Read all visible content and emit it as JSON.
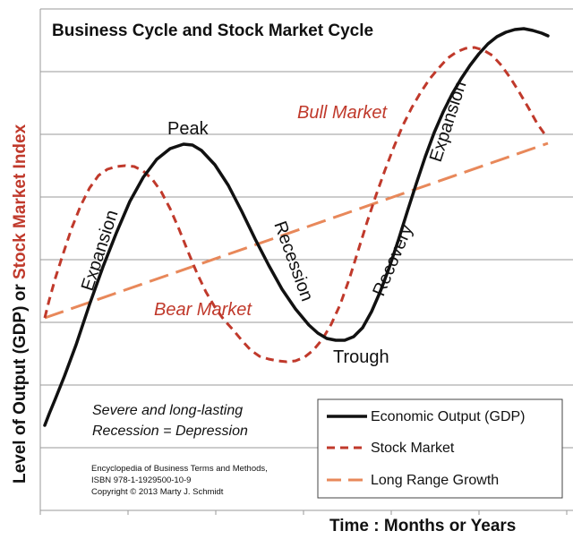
{
  "chart_data": {
    "type": "line",
    "title": "Business Cycle and Stock Market Cycle",
    "xlabel": "Time : Months or Years",
    "ylabel_part1": "Level of Output  (GDP) or ",
    "ylabel_part2": "Stock Market Index",
    "grid": true,
    "legend_position": "bottom-right",
    "colors": {
      "gdp": "#111111",
      "stock": "#c0392b",
      "growth": "#e8885a",
      "grid": "#9a9a9a",
      "bear_bull_text": "#c0392b"
    },
    "series": [
      {
        "name": "Economic Output (GDP)",
        "style": "solid",
        "points": [
          [
            50,
            475
          ],
          [
            55,
            462
          ],
          [
            62,
            445
          ],
          [
            72,
            420
          ],
          [
            85,
            385
          ],
          [
            100,
            340
          ],
          [
            115,
            298
          ],
          [
            130,
            260
          ],
          [
            145,
            225
          ],
          [
            160,
            198
          ],
          [
            175,
            178
          ],
          [
            190,
            166
          ],
          [
            205,
            161
          ],
          [
            215,
            162
          ],
          [
            225,
            168
          ],
          [
            240,
            184
          ],
          [
            255,
            207
          ],
          [
            270,
            236
          ],
          [
            285,
            267
          ],
          [
            300,
            296
          ],
          [
            315,
            323
          ],
          [
            330,
            345
          ],
          [
            345,
            363
          ],
          [
            355,
            372
          ],
          [
            365,
            378
          ],
          [
            375,
            380
          ],
          [
            385,
            380
          ],
          [
            395,
            376
          ],
          [
            405,
            366
          ],
          [
            415,
            348
          ],
          [
            425,
            325
          ],
          [
            435,
            298
          ],
          [
            445,
            268
          ],
          [
            455,
            236
          ],
          [
            465,
            205
          ],
          [
            475,
            175
          ],
          [
            485,
            148
          ],
          [
            495,
            125
          ],
          [
            505,
            105
          ],
          [
            515,
            88
          ],
          [
            525,
            73
          ],
          [
            535,
            60
          ],
          [
            545,
            49
          ],
          [
            555,
            41
          ],
          [
            565,
            36
          ],
          [
            575,
            33
          ],
          [
            585,
            32
          ],
          [
            595,
            34
          ],
          [
            605,
            37
          ],
          [
            612,
            40
          ]
        ]
      },
      {
        "name": "Stock Market",
        "style": "dashed",
        "points": [
          [
            50,
            355
          ],
          [
            55,
            335
          ],
          [
            62,
            310
          ],
          [
            70,
            285
          ],
          [
            80,
            255
          ],
          [
            90,
            230
          ],
          [
            100,
            210
          ],
          [
            110,
            196
          ],
          [
            120,
            189
          ],
          [
            130,
            186
          ],
          [
            140,
            185
          ],
          [
            150,
            186
          ],
          [
            160,
            191
          ],
          [
            170,
            200
          ],
          [
            180,
            214
          ],
          [
            190,
            233
          ],
          [
            200,
            256
          ],
          [
            210,
            281
          ],
          [
            220,
            305
          ],
          [
            230,
            326
          ],
          [
            240,
            343
          ],
          [
            250,
            357
          ],
          [
            260,
            368
          ],
          [
            270,
            380
          ],
          [
            280,
            391
          ],
          [
            290,
            398
          ],
          [
            300,
            401
          ],
          [
            310,
            403
          ],
          [
            320,
            404
          ],
          [
            330,
            403
          ],
          [
            340,
            399
          ],
          [
            350,
            391
          ],
          [
            360,
            379
          ],
          [
            370,
            362
          ],
          [
            380,
            340
          ],
          [
            390,
            312
          ],
          [
            400,
            280
          ],
          [
            410,
            248
          ],
          [
            420,
            218
          ],
          [
            430,
            190
          ],
          [
            440,
            164
          ],
          [
            450,
            140
          ],
          [
            460,
            120
          ],
          [
            470,
            103
          ],
          [
            480,
            88
          ],
          [
            490,
            76
          ],
          [
            500,
            65
          ],
          [
            510,
            58
          ],
          [
            520,
            54
          ],
          [
            530,
            53
          ],
          [
            540,
            56
          ],
          [
            550,
            62
          ],
          [
            560,
            73
          ],
          [
            570,
            87
          ],
          [
            580,
            103
          ],
          [
            590,
            120
          ],
          [
            600,
            138
          ],
          [
            610,
            152
          ]
        ]
      },
      {
        "name": "Long Range Growth",
        "style": "long-dash",
        "points": [
          [
            50,
            355
          ],
          [
            612,
            160
          ]
        ]
      }
    ],
    "annotations": [
      {
        "id": "expansion_1",
        "text": "Expansion"
      },
      {
        "id": "peak",
        "text": "Peak"
      },
      {
        "id": "recession",
        "text": "Recession"
      },
      {
        "id": "trough",
        "text": "Trough"
      },
      {
        "id": "recovery",
        "text": "Recovery"
      },
      {
        "id": "expansion_2",
        "text": "Expansion"
      },
      {
        "id": "bull_market",
        "text": "Bull Market"
      },
      {
        "id": "bear_market",
        "text": "Bear Market"
      }
    ],
    "note_line1": "Severe and long-lasting",
    "note_line2": "Recession = Depression",
    "citation_line1": "Encyclopedia of Business Terms and Methods,",
    "citation_line2": "ISBN 978-1-1929500-10-9",
    "citation_line3": "Copyright © 2013 Marty J. Schmidt",
    "legend": [
      {
        "label": "Economic Output (GDP)",
        "style": "solid"
      },
      {
        "label": "Stock Market",
        "style": "dashed"
      },
      {
        "label": "Long Range Growth",
        "style": "long-dash"
      }
    ]
  }
}
